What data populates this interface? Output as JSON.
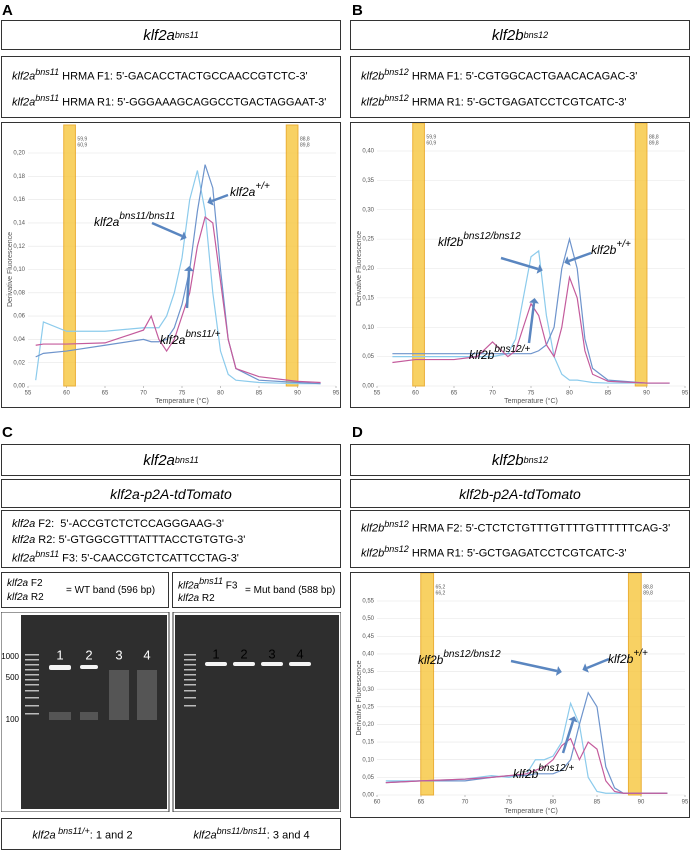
{
  "panels": [
    {
      "letter": "A",
      "gene": "klf2a",
      "allele": "bns11",
      "primers": [
        {
          "gene": "klf2a",
          "allele": "bns11",
          "text": "HRMA F1: 5'-GACACCTACTGCCAACCGTCTC-3'"
        },
        {
          "gene": "klf2a",
          "allele": "bns11",
          "text": "HRMA R1: 5'-GGGAAAGCAGGCCTGACTAGGAAT-3'"
        }
      ]
    },
    {
      "letter": "B",
      "gene": "klf2b",
      "allele": "bns12",
      "primers": [
        {
          "gene": "klf2b",
          "allele": "bns12",
          "text": "HRMA F1: 5'-CGTGGCACTGAACACAGAC-3'"
        },
        {
          "gene": "klf2b",
          "allele": "bns12",
          "text": "HRMA R1: 5'-GCTGAGATCCTCGTCATC-3'"
        }
      ]
    },
    {
      "letter": "C",
      "gene": "klf2a",
      "allele": "bns11",
      "subtitle": "klf2a-p2A-tdTomato",
      "primers": [
        {
          "gene": "klf2a",
          "text": " F2:  5'-ACCGTCTCTCCAGGGAAG-3'"
        },
        {
          "gene": "klf2a",
          "text": " R2: 5'-GTGGCGTTTATTTACCTGTGTG-3'"
        },
        {
          "gene": "klf2a",
          "allele": "bns11",
          "text": " F3: 5'-CAACCGTCTCATTCCTAG-3'"
        }
      ]
    },
    {
      "letter": "D",
      "gene": "klf2b",
      "allele": "bns12",
      "subtitle": "klf2b-p2A-tdTomato",
      "primers": [
        {
          "gene": "klf2b",
          "allele": "bns12",
          "text": "HRMA F2: 5'-CTCTCTGTTTGTTTTGTTTTTTCAG-3'"
        },
        {
          "gene": "klf2b",
          "allele": "bns12",
          "text": "HRMA R1: 5'-GCTGAGATCCTCGTCATC-3'"
        }
      ]
    }
  ],
  "gel": {
    "keys": [
      {
        "lines": [
          {
            "gene": "klf2a",
            "text": " F2"
          },
          {
            "gene": "klf2a",
            "text": " R2"
          }
        ],
        "result": "= WT band (596 bp)"
      },
      {
        "lines": [
          {
            "gene": "klf2a",
            "allele": "bns11",
            "text": " F3"
          },
          {
            "gene": "klf2a",
            "text": " R2"
          }
        ],
        "result": "= Mut band (588 bp)"
      }
    ],
    "ladder_labels": [
      "1000",
      "500",
      "100"
    ],
    "lanes_left": [
      "1",
      "2",
      "3",
      "4"
    ],
    "lanes_right": [
      "1",
      "2",
      "3",
      "4"
    ],
    "genotypes": [
      {
        "gene": "klf2a",
        "allele": " bns11/+",
        "text": ": 1 and 2"
      },
      {
        "gene": "klf2a",
        "allele": "bns11/bns11",
        "text": ": 3 and 4"
      }
    ]
  },
  "chart_data": [
    {
      "type": "line",
      "ylabel": "Derivative Fluorescence",
      "xlabel": "Temperature (°C)",
      "xlim": [
        55,
        95
      ],
      "xticks": [
        55,
        60,
        65,
        70,
        75,
        80,
        85,
        90,
        95
      ],
      "ylim": [
        0,
        0.2
      ],
      "yticks": [
        {
          "value": 0,
          "label": "0,00"
        },
        {
          "value": 0.02,
          "label": "0,02"
        },
        {
          "value": 0.04,
          "label": "0,04"
        },
        {
          "value": 0.06,
          "label": "0,06"
        },
        {
          "value": 0.08,
          "label": "0,08"
        },
        {
          "value": 0.1,
          "label": "0,10"
        },
        {
          "value": 0.12,
          "label": "0,12"
        },
        {
          "value": 0.14,
          "label": "0,14"
        },
        {
          "value": 0.16,
          "label": "0,16"
        },
        {
          "value": 0.18,
          "label": "0,18"
        },
        {
          "value": 0.2,
          "label": "0,20"
        }
      ],
      "markers": [
        [
          {
            "value": 59.9,
            "label": "59,9"
          },
          {
            "value": 60.9,
            "label": "60,9"
          }
        ],
        [
          {
            "value": 88.8,
            "label": "88,8"
          },
          {
            "value": 89.8,
            "label": "89,8"
          }
        ]
      ],
      "x": [
        56,
        57,
        60,
        65,
        70,
        71,
        72,
        73,
        74,
        75,
        76,
        77,
        78,
        79,
        80,
        81,
        82,
        85,
        90,
        93
      ],
      "series": [
        {
          "color": "#8ccbec",
          "values": [
            0.005,
            0.055,
            0.047,
            0.047,
            0.05,
            0.05,
            0.05,
            0.06,
            0.08,
            0.11,
            0.16,
            0.185,
            0.15,
            0.08,
            0.03,
            0.01,
            0.005,
            0.003,
            0.002,
            0.002
          ]
        },
        {
          "color": "#6e94cc",
          "values": [
            0.025,
            0.028,
            0.03,
            0.035,
            0.04,
            0.038,
            0.038,
            0.04,
            0.05,
            0.07,
            0.1,
            0.15,
            0.19,
            0.17,
            0.1,
            0.04,
            0.015,
            0.005,
            0.003,
            0.002
          ]
        },
        {
          "color": "#c45b9c",
          "values": [
            0.035,
            0.036,
            0.036,
            0.037,
            0.048,
            0.06,
            0.04,
            0.03,
            0.04,
            0.06,
            0.08,
            0.12,
            0.145,
            0.14,
            0.09,
            0.04,
            0.015,
            0.008,
            0.004,
            0.003
          ]
        }
      ],
      "annotations": [
        {
          "gene": "klf2a",
          "allele": "+/+"
        },
        {
          "gene": "klf2a",
          "allele": "bns11/bns11"
        },
        {
          "gene": "klf2a",
          "allele": "bns11/+"
        }
      ]
    },
    {
      "type": "line",
      "ylabel": "Derivative Fluorescence",
      "xlabel": "Temperature (°C)",
      "xlim": [
        55,
        95
      ],
      "xticks": [
        55,
        60,
        65,
        70,
        75,
        80,
        85,
        90,
        95
      ],
      "ylim": [
        0,
        0.4
      ],
      "yticks": [
        {
          "value": 0,
          "label": "0,00"
        },
        {
          "value": 0.05,
          "label": "0,05"
        },
        {
          "value": 0.1,
          "label": "0,10"
        },
        {
          "value": 0.15,
          "label": "0,15"
        },
        {
          "value": 0.2,
          "label": "0,20"
        },
        {
          "value": 0.25,
          "label": "0,25"
        },
        {
          "value": 0.3,
          "label": "0,30"
        },
        {
          "value": 0.35,
          "label": "0,35"
        },
        {
          "value": 0.4,
          "label": "0,40"
        }
      ],
      "markers": [
        [
          {
            "value": 59.9,
            "label": "59,9"
          },
          {
            "value": 60.9,
            "label": "60,9"
          }
        ],
        [
          {
            "value": 88.8,
            "label": "88,8"
          },
          {
            "value": 89.8,
            "label": "89,8"
          }
        ]
      ],
      "x": [
        57,
        60,
        65,
        68,
        70,
        72,
        73,
        74,
        75,
        76,
        77,
        78,
        79,
        80,
        81,
        82,
        83,
        85,
        90,
        93
      ],
      "series": [
        {
          "color": "#8ccbec",
          "values": [
            0.05,
            0.05,
            0.05,
            0.05,
            0.05,
            0.055,
            0.08,
            0.15,
            0.22,
            0.23,
            0.12,
            0.05,
            0.02,
            0.01,
            0.01,
            0.008,
            0.006,
            0.005,
            0.005,
            0.005
          ]
        },
        {
          "color": "#6e94cc",
          "values": [
            0.055,
            0.055,
            0.055,
            0.055,
            0.055,
            0.055,
            0.055,
            0.055,
            0.055,
            0.06,
            0.07,
            0.1,
            0.2,
            0.25,
            0.2,
            0.08,
            0.03,
            0.01,
            0.005,
            0.005
          ]
        },
        {
          "color": "#c45b9c",
          "values": [
            0.04,
            0.045,
            0.045,
            0.05,
            0.075,
            0.05,
            0.06,
            0.1,
            0.14,
            0.12,
            0.07,
            0.05,
            0.1,
            0.185,
            0.15,
            0.06,
            0.02,
            0.008,
            0.005,
            0.005
          ]
        }
      ],
      "annotations": [
        {
          "gene": "klf2b",
          "allele": "+/+"
        },
        {
          "gene": "klf2b",
          "allele": "bns12/bns12"
        },
        {
          "gene": "klf2b",
          "allele": "bns12/+"
        }
      ]
    },
    {
      "type": "line",
      "ylabel": "Derivative Fluorescence",
      "xlabel": "Temperature (°C)",
      "xlim": [
        60,
        95
      ],
      "xticks": [
        60,
        65,
        70,
        75,
        80,
        85,
        90,
        95
      ],
      "ylim": [
        0,
        0.55
      ],
      "yticks": [
        {
          "value": 0,
          "label": "0,00"
        },
        {
          "value": 0.05,
          "label": "0,05"
        },
        {
          "value": 0.1,
          "label": "0,10"
        },
        {
          "value": 0.15,
          "label": "0,15"
        },
        {
          "value": 0.2,
          "label": "0,20"
        },
        {
          "value": 0.25,
          "label": "0,25"
        },
        {
          "value": 0.3,
          "label": "0,30"
        },
        {
          "value": 0.35,
          "label": "0,35"
        },
        {
          "value": 0.4,
          "label": "0,40"
        },
        {
          "value": 0.45,
          "label": "0,45"
        },
        {
          "value": 0.5,
          "label": "0,50"
        },
        {
          "value": 0.55,
          "label": "0,55"
        }
      ],
      "markers": [
        [
          {
            "value": 65.2,
            "label": "65,2"
          },
          {
            "value": 66.2,
            "label": "66,2"
          }
        ],
        [
          {
            "value": 88.8,
            "label": "88,8"
          },
          {
            "value": 89.8,
            "label": "89,8"
          }
        ]
      ],
      "x": [
        61,
        65,
        70,
        73,
        75,
        77,
        78,
        79,
        80,
        81,
        82,
        83,
        84,
        85,
        86,
        87,
        88,
        90,
        93
      ],
      "series": [
        {
          "color": "#8ccbec",
          "values": [
            0.04,
            0.04,
            0.045,
            0.055,
            0.05,
            0.06,
            0.1,
            0.1,
            0.11,
            0.15,
            0.26,
            0.2,
            0.05,
            0.01,
            0.005,
            0.005,
            0.005,
            0.005,
            0.005
          ]
        },
        {
          "color": "#6e94cc",
          "values": [
            0.035,
            0.04,
            0.04,
            0.05,
            0.055,
            0.055,
            0.06,
            0.06,
            0.06,
            0.07,
            0.1,
            0.2,
            0.29,
            0.25,
            0.08,
            0.02,
            0.005,
            0.005,
            0.005
          ]
        },
        {
          "color": "#c45b9c",
          "values": [
            0.035,
            0.04,
            0.045,
            0.05,
            0.055,
            0.06,
            0.07,
            0.08,
            0.1,
            0.14,
            0.16,
            0.1,
            0.15,
            0.13,
            0.04,
            0.01,
            0.005,
            0.005,
            0.005
          ]
        }
      ],
      "annotations": [
        {
          "gene": "klf2b",
          "allele": "+/+"
        },
        {
          "gene": "klf2b",
          "allele": "bns12/bns12"
        },
        {
          "gene": "klf2b",
          "allele": "bns12/+"
        }
      ]
    }
  ]
}
